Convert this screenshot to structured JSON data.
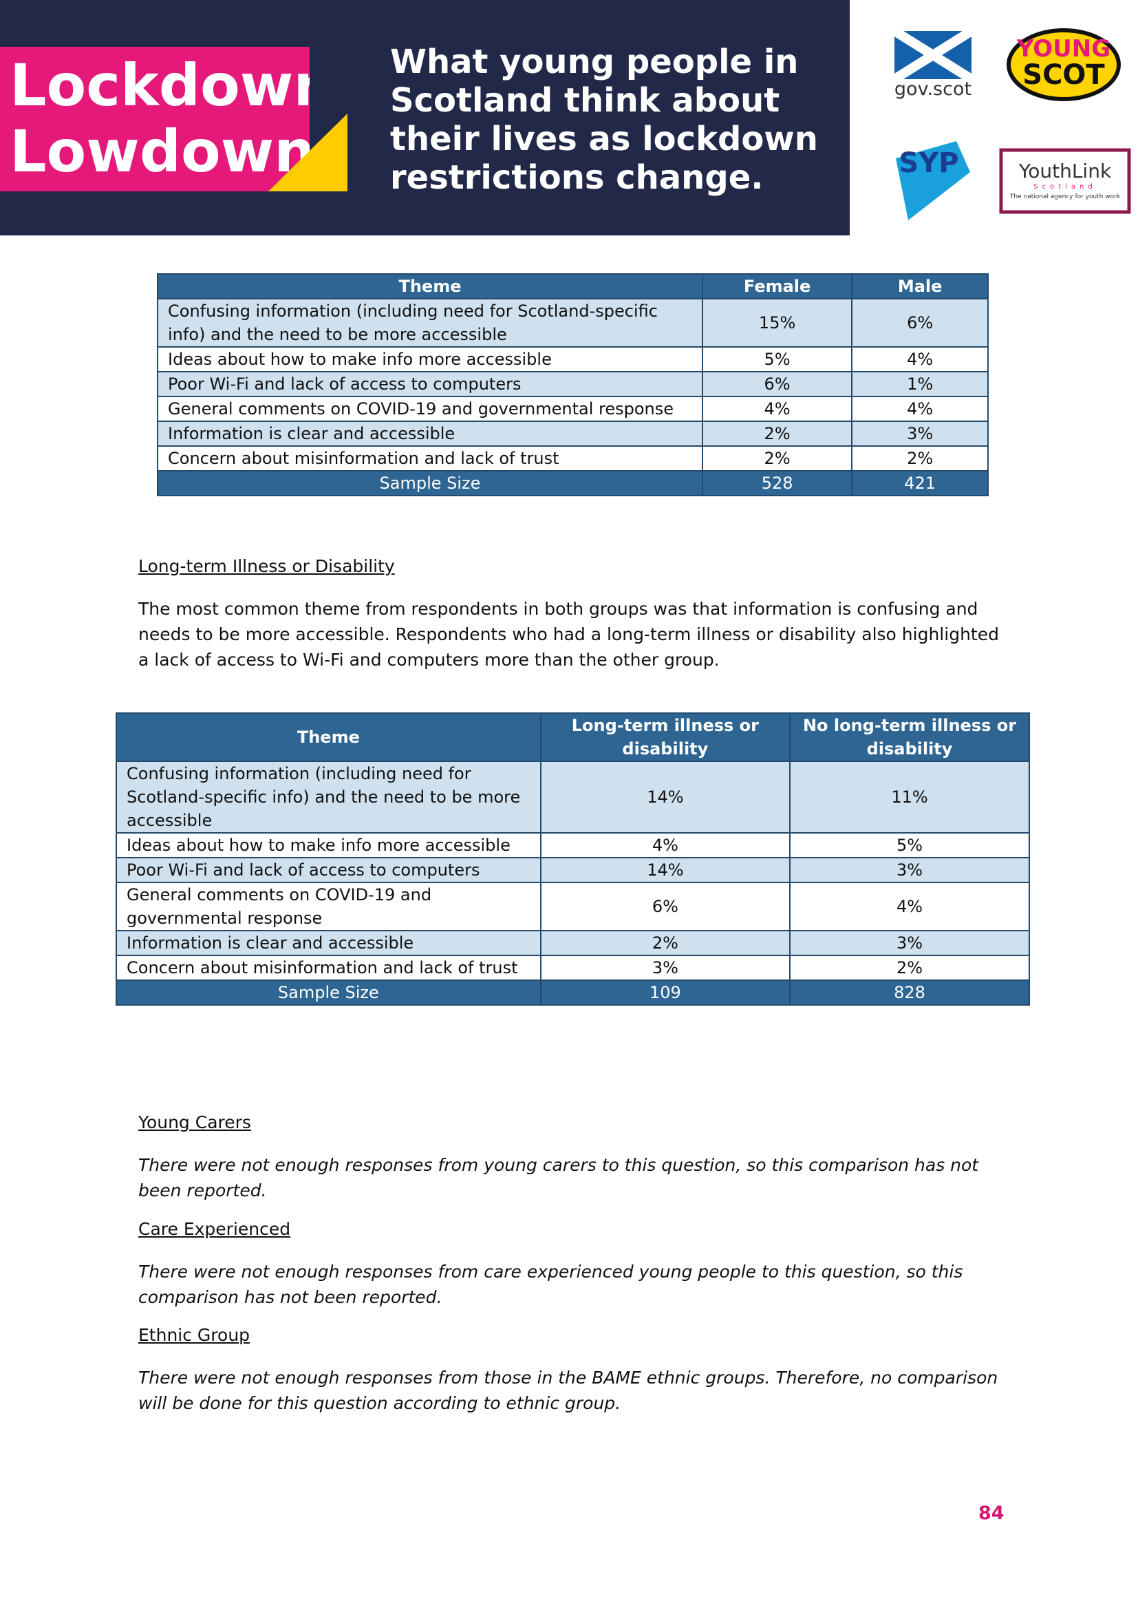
{
  "header": {
    "brand": [
      "Lockdown",
      "Lowdown"
    ],
    "title": [
      "What young people in",
      "Scotland think about",
      "their lives as lockdown",
      "restrictions change."
    ]
  },
  "logos": {
    "gov_scot": "gov.scot",
    "young_scot": [
      "YOUNG",
      "SCOT"
    ],
    "syp": "SYP",
    "youthlink": [
      "YouthLink",
      "Scotland",
      "The national agency for youth work"
    ]
  },
  "table1": {
    "columns": [
      "Theme",
      "Female",
      "Male"
    ],
    "rows": [
      [
        "Confusing information (including need for Scotland-specific info) and the need to be more accessible",
        "15%",
        "6%"
      ],
      [
        "Ideas about how to make info more accessible",
        "5%",
        "4%"
      ],
      [
        "Poor Wi-Fi and lack of access to computers",
        "6%",
        "1%"
      ],
      [
        "General comments on COVID-19 and governmental response",
        "4%",
        "4%"
      ],
      [
        "Information is clear and accessible",
        "2%",
        "3%"
      ],
      [
        "Concern about misinformation and lack of trust",
        "2%",
        "2%"
      ]
    ],
    "footer": [
      "Sample Size",
      "528",
      "421"
    ]
  },
  "section": {
    "heading": "Long-term Illness or Disability",
    "paragraph": "The most common theme from respondents in both groups was that information is confusing and needs to be more accessible. Respondents who had a long-term illness or disability also highlighted a lack of access to Wi-Fi and computers more than the other group."
  },
  "table2": {
    "columns": [
      "Theme",
      "Long-term illness or disability",
      "No long-term illness or disability"
    ],
    "rows": [
      [
        "Confusing information (including need for Scotland-specific info) and the need to be more accessible",
        "14%",
        "11%"
      ],
      [
        "Ideas about how to make info more accessible",
        "4%",
        "5%"
      ],
      [
        "Poor Wi-Fi and lack of access to computers",
        "14%",
        "3%"
      ],
      [
        "General comments on COVID-19 and governmental response",
        "6%",
        "4%"
      ],
      [
        "Information is clear and accessible",
        "2%",
        "3%"
      ],
      [
        "Concern about misinformation and lack of trust",
        "3%",
        "2%"
      ]
    ],
    "footer": [
      "Sample Size",
      "109",
      "828"
    ]
  },
  "notes": [
    {
      "heading": "Young Carers",
      "text": "There were not enough responses from young carers to this question, so this comparison has not been reported."
    },
    {
      "heading": "Care Experienced",
      "text": "There were not enough responses from care experienced young people to this question, so this comparison has not been reported."
    },
    {
      "heading": "Ethnic Group",
      "text": "There were not enough responses from those in the BAME ethnic groups. Therefore, no comparison will be done for this question according to ethnic group."
    }
  ],
  "page_number": "84"
}
